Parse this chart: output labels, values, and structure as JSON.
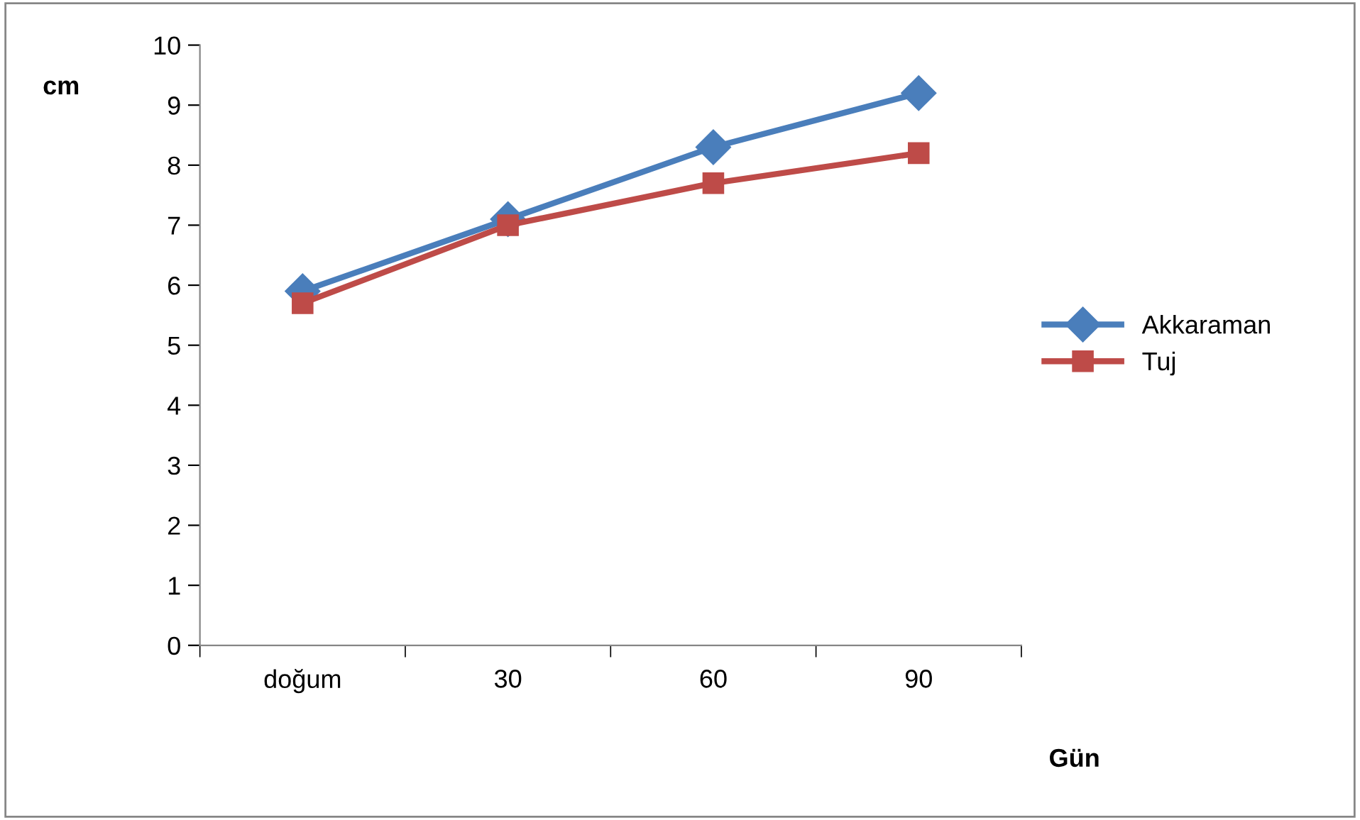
{
  "chart_data": {
    "type": "line",
    "xlabel": "Gün",
    "ylabel": "cm",
    "categories": [
      "doğum",
      "30",
      "60",
      "90"
    ],
    "series": [
      {
        "name": "Akkaraman",
        "color": "#4a7ebb",
        "marker": "diamond",
        "values": [
          5.9,
          7.1,
          8.3,
          9.2
        ]
      },
      {
        "name": "Tuj",
        "color": "#be4b48",
        "marker": "square",
        "values": [
          5.7,
          7.0,
          7.7,
          8.2
        ]
      }
    ],
    "ylim": [
      0,
      10
    ],
    "yticks": [
      0,
      1,
      2,
      3,
      4,
      5,
      6,
      7,
      8,
      9,
      10
    ],
    "grid": false,
    "legend": "right"
  }
}
